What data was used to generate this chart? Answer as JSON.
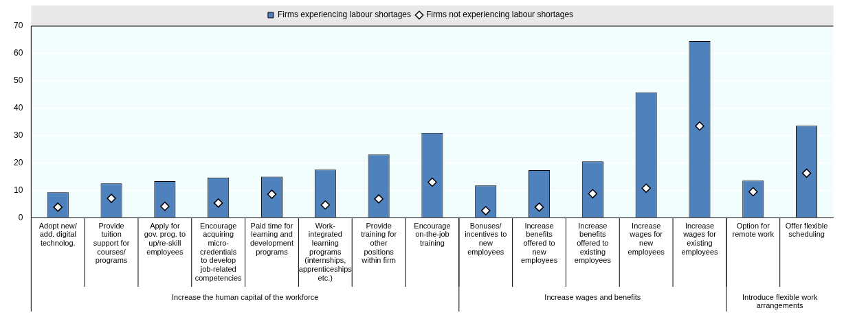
{
  "chart_data": {
    "type": "bar",
    "categories": [
      "Adopt new/ add. digital technolog.",
      "Provide tuition support for courses/ programs",
      "Apply for gov. prog. to up/re-skill employees",
      "Encourage acquiring micro-credentials to develop job-related competencies",
      "Paid time for learning and development programs",
      "Work-integrated learning programs (internships, apprenticeships etc.)",
      "Provide training for other positions within firm",
      "Encourage on-the-job training",
      "Bonuses/ incentives to new employees",
      "Increase benefits offered to new employees",
      "Increase benefits offered to existing employees",
      "Increase wages for new employees",
      "Increase wages for existing employees",
      "Option for remote work",
      "Offer flexible scheduling"
    ],
    "series": [
      {
        "name": "Firms experiencing labour shortages",
        "color": "#4f81bd",
        "values": [
          9.3,
          12.6,
          13.4,
          14.7,
          15.0,
          17.6,
          23.1,
          31.0,
          11.8,
          17.4,
          20.6,
          45.8,
          64.5,
          13.6,
          33.6
        ]
      },
      {
        "name": "Firms not experiencing labour shortages",
        "type": "scatter",
        "marker": "diamond",
        "color": "#ffffff",
        "values": [
          3.9,
          7.1,
          4.2,
          5.4,
          8.6,
          4.7,
          6.9,
          13.0,
          2.6,
          3.9,
          8.8,
          10.8,
          33.5,
          9.5,
          16.3
        ]
      }
    ],
    "annotations": [
      "Increase the human capital of the workforce",
      "Increase wages and benefits",
      "Introduce flexible work arrangements"
    ],
    "ylim": [
      0,
      70
    ],
    "yticks": [
      0,
      10,
      20,
      30,
      40,
      50,
      60,
      70
    ],
    "grid": "y",
    "legend": "top"
  }
}
